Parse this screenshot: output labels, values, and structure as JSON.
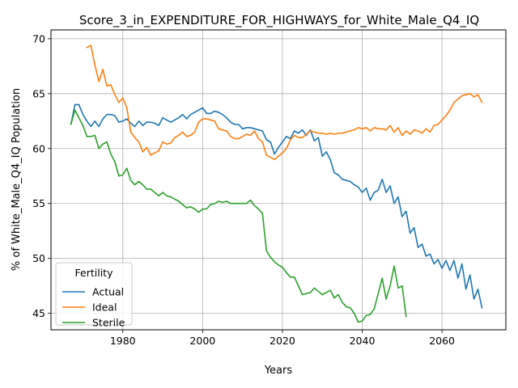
{
  "chart_data": {
    "type": "line",
    "title": "Score_3_in_EXPENDITURE_FOR_HIGHWAYS_for_White_Male_Q4_IQ",
    "xlabel": "Years",
    "ylabel": "% of White_Male_Q4_IQ Population",
    "xlim": [
      1962,
      2076
    ],
    "ylim": [
      43.5,
      70.8
    ],
    "xticks": [
      1980,
      2000,
      2020,
      2040,
      2060
    ],
    "yticks": [
      45,
      50,
      55,
      60,
      65,
      70
    ],
    "grid": true,
    "legend": {
      "title": "Fertility",
      "position": "lower-left"
    },
    "series": [
      {
        "name": "Actual",
        "color": "#1f77b4",
        "x": [
          1967,
          1968,
          1969,
          1970,
          1971,
          1972,
          1973,
          1974,
          1975,
          1976,
          1977,
          1978,
          1979,
          1980,
          1981,
          1982,
          1983,
          1984,
          1985,
          1986,
          1987,
          1988,
          1989,
          1990,
          1991,
          1992,
          1993,
          1994,
          1995,
          1996,
          1997,
          1998,
          1999,
          2000,
          2001,
          2002,
          2003,
          2004,
          2005,
          2006,
          2007,
          2008,
          2009,
          2010,
          2011,
          2012,
          2013,
          2014,
          2015,
          2016,
          2017,
          2018,
          2019,
          2020,
          2021,
          2022,
          2023,
          2024,
          2025,
          2026,
          2027,
          2028,
          2029,
          2030,
          2031,
          2032,
          2033,
          2034,
          2035,
          2036,
          2037,
          2038,
          2039,
          2040,
          2041,
          2042,
          2043,
          2044,
          2045,
          2046,
          2047,
          2048,
          2049,
          2050,
          2051,
          2052,
          2053,
          2054,
          2055,
          2056,
          2057,
          2058,
          2059,
          2060,
          2061,
          2062,
          2063,
          2064,
          2065,
          2066,
          2067,
          2068,
          2069,
          2070
        ],
        "y": [
          62.2,
          64.0,
          64.0,
          63.1,
          62.5,
          62.0,
          62.5,
          62.0,
          62.7,
          63.1,
          63.1,
          63.0,
          62.4,
          62.5,
          62.7,
          62.3,
          62.0,
          62.5,
          62.1,
          62.4,
          62.4,
          62.3,
          62.1,
          62.8,
          62.6,
          62.4,
          62.6,
          62.8,
          63.1,
          62.7,
          63.1,
          63.3,
          63.5,
          63.7,
          63.2,
          63.2,
          63.4,
          63.3,
          63.1,
          62.8,
          62.4,
          62.2,
          62.2,
          61.8,
          61.9,
          61.9,
          61.8,
          61.7,
          61.6,
          60.8,
          60.6,
          59.5,
          60.1,
          60.6,
          61.1,
          60.9,
          61.6,
          61.4,
          61.7,
          61.2,
          61.7,
          60.7,
          61.0,
          59.3,
          59.7,
          59.0,
          57.8,
          57.6,
          57.2,
          57.1,
          57.0,
          56.7,
          56.5,
          56.0,
          56.4,
          55.3,
          56.0,
          56.2,
          57.2,
          56.0,
          56.6,
          55.0,
          55.6,
          53.8,
          54.3,
          52.3,
          52.8,
          51.0,
          51.3,
          50.2,
          50.4,
          49.5,
          49.9,
          49.1,
          49.8,
          48.9,
          49.8,
          48.2,
          49.5,
          47.2,
          48.5,
          46.3,
          47.2,
          45.5
        ]
      },
      {
        "name": "Ideal",
        "color": "#ff7f0e",
        "x": [
          1971,
          1972,
          1973,
          1974,
          1975,
          1976,
          1977,
          1978,
          1979,
          1980,
          1981,
          1982,
          1983,
          1984,
          1985,
          1986,
          1987,
          1988,
          1989,
          1990,
          1991,
          1992,
          1993,
          1994,
          1995,
          1996,
          1997,
          1998,
          1999,
          2000,
          2001,
          2002,
          2003,
          2004,
          2005,
          2006,
          2007,
          2008,
          2009,
          2010,
          2011,
          2012,
          2013,
          2014,
          2015,
          2016,
          2017,
          2018,
          2019,
          2020,
          2021,
          2022,
          2023,
          2024,
          2025,
          2026,
          2027,
          2028,
          2029,
          2030,
          2031,
          2032,
          2033,
          2034,
          2035,
          2036,
          2037,
          2038,
          2039,
          2040,
          2041,
          2042,
          2043,
          2044,
          2045,
          2046,
          2047,
          2048,
          2049,
          2050,
          2051,
          2052,
          2053,
          2054,
          2055,
          2056,
          2057,
          2058,
          2059,
          2060,
          2061,
          2062,
          2063,
          2064,
          2065,
          2066,
          2067,
          2068,
          2069,
          2070
        ],
        "y": [
          69.2,
          69.4,
          67.6,
          66.1,
          67.2,
          65.7,
          65.8,
          64.9,
          64.2,
          64.6,
          63.7,
          61.5,
          61.0,
          60.6,
          59.7,
          60.1,
          59.4,
          59.6,
          59.8,
          60.6,
          60.4,
          60.5,
          61.0,
          61.2,
          61.5,
          61.1,
          61.2,
          61.5,
          62.4,
          62.7,
          62.7,
          62.6,
          62.5,
          61.8,
          61.7,
          61.6,
          61.1,
          60.9,
          60.9,
          61.1,
          61.3,
          61.2,
          61.6,
          60.9,
          60.6,
          59.4,
          59.2,
          59.0,
          59.3,
          59.6,
          60.0,
          60.8,
          61.2,
          61.0,
          61.0,
          61.3,
          61.6,
          61.5,
          61.4,
          61.4,
          61.3,
          61.4,
          61.3,
          61.4,
          61.4,
          61.5,
          61.6,
          61.7,
          61.9,
          61.8,
          61.9,
          61.6,
          61.9,
          61.8,
          61.8,
          61.7,
          62.1,
          61.5,
          61.9,
          61.2,
          61.6,
          61.3,
          61.7,
          61.6,
          61.4,
          61.8,
          61.5,
          62.1,
          62.2,
          62.6,
          63.0,
          63.5,
          64.2,
          64.5,
          64.8,
          64.9,
          65.0,
          64.7,
          64.9,
          64.2
        ]
      },
      {
        "name": "Sterile",
        "color": "#2ca02c",
        "x": [
          1967,
          1968,
          1969,
          1970,
          1971,
          1972,
          1973,
          1974,
          1975,
          1976,
          1977,
          1978,
          1979,
          1980,
          1981,
          1982,
          1983,
          1984,
          1985,
          1986,
          1987,
          1988,
          1989,
          1990,
          1991,
          1992,
          1993,
          1994,
          1995,
          1996,
          1997,
          1998,
          1999,
          2000,
          2001,
          2002,
          2003,
          2004,
          2005,
          2006,
          2007,
          2008,
          2009,
          2010,
          2011,
          2012,
          2013,
          2014,
          2015,
          2016,
          2017,
          2018,
          2019,
          2020,
          2021,
          2022,
          2023,
          2024,
          2025,
          2026,
          2027,
          2028,
          2029,
          2030,
          2031,
          2032,
          2033,
          2034,
          2035,
          2036,
          2037,
          2038,
          2039,
          2040,
          2041,
          2042,
          2043,
          2044,
          2045,
          2046,
          2047,
          2048,
          2049,
          2050,
          2051
        ],
        "y": [
          62.2,
          63.5,
          62.8,
          62.1,
          61.1,
          61.1,
          61.2,
          60.0,
          60.4,
          60.6,
          59.5,
          58.8,
          57.5,
          57.6,
          58.2,
          57.1,
          56.7,
          57.0,
          56.7,
          56.3,
          56.3,
          56.0,
          55.7,
          56.0,
          55.7,
          55.6,
          55.4,
          55.2,
          54.9,
          54.6,
          54.7,
          54.5,
          54.2,
          54.5,
          54.5,
          54.9,
          55.0,
          55.2,
          55.1,
          55.2,
          55.0,
          55.0,
          55.0,
          55.0,
          55.0,
          55.3,
          54.8,
          54.5,
          54.1,
          50.7,
          50.1,
          49.7,
          49.4,
          49.2,
          48.7,
          48.3,
          48.3,
          47.5,
          46.7,
          46.8,
          46.9,
          47.3,
          47.0,
          46.7,
          46.9,
          47.1,
          46.4,
          46.7,
          46.0,
          45.6,
          45.5,
          45.0,
          44.2,
          44.3,
          44.8,
          44.9,
          45.4,
          46.8,
          48.2,
          46.3,
          47.5,
          49.3,
          47.3,
          47.5,
          44.7
        ]
      }
    ]
  }
}
